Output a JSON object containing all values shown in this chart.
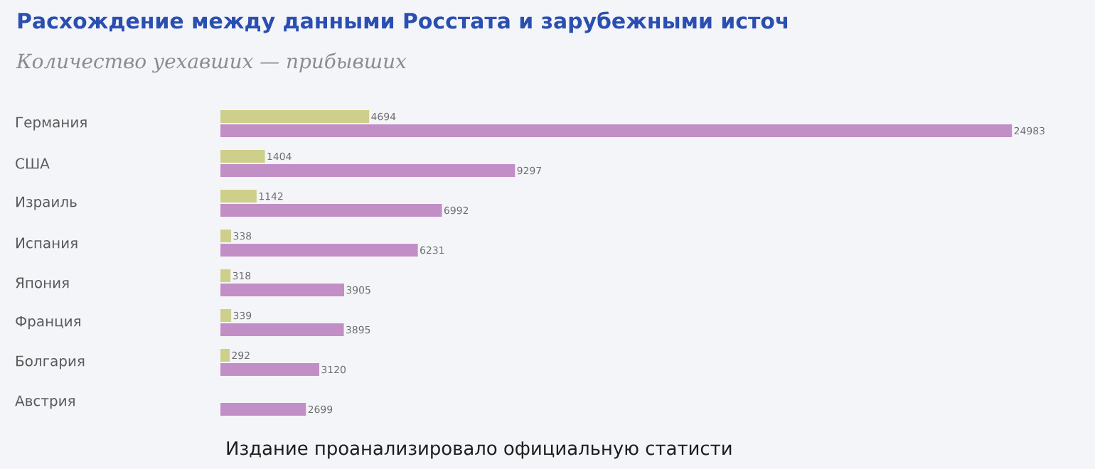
{
  "chart_data": {
    "type": "bar",
    "orientation": "horizontal",
    "title": "Расхождение между данными Росстата и зарубежными источ",
    "subtitle": "Количество уехавших — прибывших",
    "categories": [
      "Германия",
      "США",
      "Израиль",
      "Испания",
      "Япония",
      "Франция",
      "Болгария",
      "Австрия"
    ],
    "series": [
      {
        "color": "#cfcf8c",
        "values": [
          4694,
          1404,
          1142,
          338,
          318,
          339,
          292,
          null
        ]
      },
      {
        "color": "#c18fc6",
        "values": [
          24983,
          9297,
          6992,
          6231,
          3905,
          3895,
          3120,
          2699
        ]
      }
    ],
    "data_labels": true,
    "annotations": [
      "Издание проанализировало официальную статисти"
    ]
  }
}
